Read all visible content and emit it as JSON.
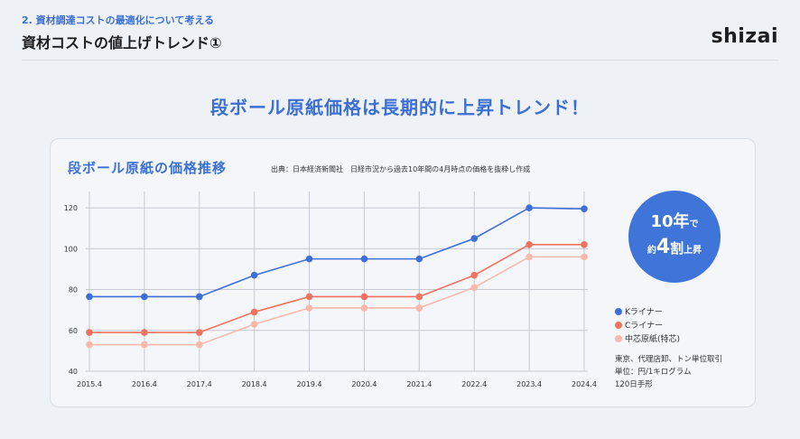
{
  "header": {
    "section": "2. 資材調達コストの最適化について考える",
    "title": "資材コストの値上げトレンド①",
    "logo": "shizai"
  },
  "headline": "段ボール原紙価格は長期的に上昇トレンド！",
  "badge": {
    "line1_big": "10年",
    "line1_small": "で",
    "line2_small_a": "約",
    "line2_big": "4",
    "line2_mid": "割",
    "line2_small_b": "上昇"
  },
  "notes": [
    "東京、代理店卸、トン単位取引",
    "単位：円/1キログラム",
    "120日手形"
  ],
  "colors": {
    "accent": "#3b6fd4",
    "k_liner": "#3f6fd6",
    "c_liner": "#ee7360",
    "core_paper": "#f8b9ad",
    "grid": "#c6cad2",
    "badge": "#3f74d8"
  },
  "chart_data": {
    "type": "line",
    "title": "段ボール原紙の価格推移",
    "source": "出典：日本経済新聞社　日経市況から過去10年間の4月時点の価格を抜粋し作成",
    "categories": [
      "2015.4",
      "2016.4",
      "2017.4",
      "2018.4",
      "2019.4",
      "2020.4",
      "2021.4",
      "2022.4",
      "2023.4",
      "2024.4"
    ],
    "series": [
      {
        "name": "Kライナー",
        "color": "#3f6fd6",
        "values": [
          76.5,
          76.5,
          76.5,
          87,
          95,
          95,
          95,
          105,
          120,
          119.5
        ]
      },
      {
        "name": "Cライナー",
        "color": "#ee7360",
        "values": [
          59,
          59,
          59,
          69,
          76.5,
          76.5,
          76.5,
          87,
          102,
          102
        ]
      },
      {
        "name": "中芯原紙(特芯)",
        "color": "#f8b9ad",
        "values": [
          53,
          53,
          53,
          63,
          71,
          71,
          71,
          81,
          96,
          96
        ]
      }
    ],
    "yticks": [
      40,
      60,
      80,
      100,
      120
    ],
    "ylim": [
      40,
      128
    ],
    "grid": true,
    "legend_position": "right"
  }
}
